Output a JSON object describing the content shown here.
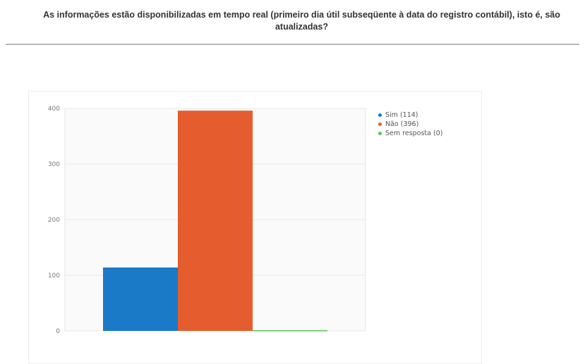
{
  "question": {
    "text": "As informações estão disponibilizadas em tempo real (primeiro dia útil subseqüente à data do registro contábil), isto é, são atualizadas?"
  },
  "chart_data": {
    "type": "bar",
    "categories": [
      "Sim",
      "Não",
      "Sem resposta"
    ],
    "values": [
      114,
      396,
      0
    ],
    "colors": [
      "#1a7ac7",
      "#e55d2e",
      "#5cc25c"
    ],
    "legend": [
      "Sim (114)",
      "Não (396)",
      "Sem resposta (0)"
    ],
    "yticks": [
      0,
      100,
      200,
      300,
      400
    ],
    "ytick_labels": [
      "0",
      "100",
      "200",
      "300",
      "400"
    ],
    "ylim": [
      0,
      400
    ],
    "grid": true,
    "legend_position": "top-right"
  }
}
